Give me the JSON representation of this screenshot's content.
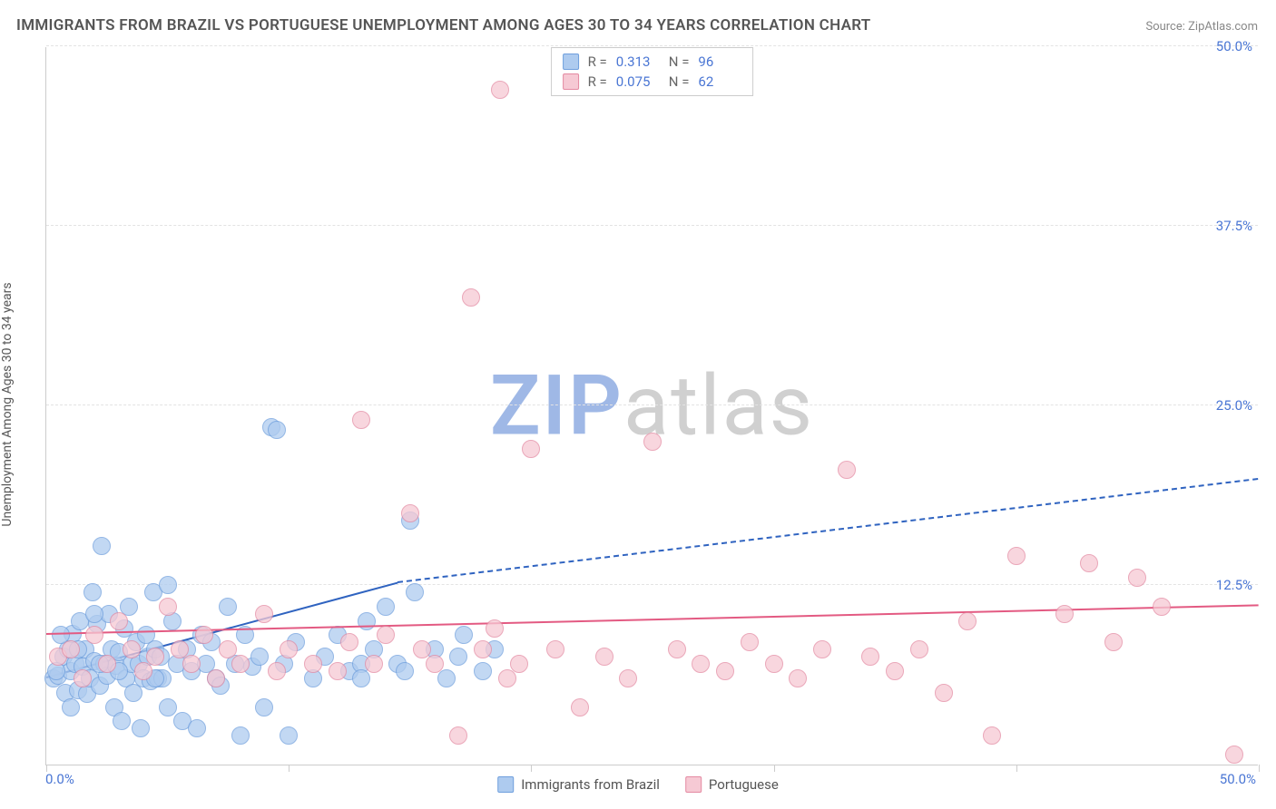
{
  "title": "IMMIGRANTS FROM BRAZIL VS PORTUGUESE UNEMPLOYMENT AMONG AGES 30 TO 34 YEARS CORRELATION CHART",
  "source_label": "Source: ",
  "source_link": "ZipAtlas.com",
  "y_axis_title": "Unemployment Among Ages 30 to 34 years",
  "watermark_a": "ZIP",
  "watermark_b": "atlas",
  "xlim": [
    0,
    50
  ],
  "ylim": [
    0,
    50
  ],
  "x_ticks": [
    0,
    10,
    20,
    30,
    40,
    50
  ],
  "y_gridlines": [
    12.5,
    25.0,
    37.5,
    50.0
  ],
  "y_labels": [
    "12.5%",
    "25.0%",
    "37.5%",
    "50.0%"
  ],
  "x_label_min": "0.0%",
  "x_label_max": "50.0%",
  "marker_radius": 10,
  "series": [
    {
      "name": "Immigrants from Brazil",
      "fill": "#aecbef",
      "stroke": "#6f9fdd",
      "trend_color": "#2f63c0",
      "R": "0.313",
      "N": "96",
      "trend": {
        "x1": 0,
        "y1": 6.0,
        "x2_solid": 14.5,
        "y2_solid": 12.6,
        "x2_dash": 50,
        "y2_dash": 19.8
      },
      "points": [
        [
          0.3,
          6.0
        ],
        [
          0.5,
          6.2
        ],
        [
          0.7,
          7.5
        ],
        [
          0.8,
          5.0
        ],
        [
          0.9,
          8.0
        ],
        [
          1.0,
          6.5
        ],
        [
          1.1,
          9.1
        ],
        [
          1.2,
          7.0
        ],
        [
          1.3,
          5.2
        ],
        [
          1.4,
          10.0
        ],
        [
          1.5,
          6.8
        ],
        [
          1.6,
          8.0
        ],
        [
          1.7,
          4.9
        ],
        [
          1.8,
          6.0
        ],
        [
          1.9,
          12.0
        ],
        [
          2.0,
          7.2
        ],
        [
          2.1,
          9.8
        ],
        [
          2.2,
          5.5
        ],
        [
          2.3,
          15.2
        ],
        [
          2.4,
          7.0
        ],
        [
          2.5,
          6.2
        ],
        [
          2.6,
          10.5
        ],
        [
          2.7,
          8.0
        ],
        [
          2.8,
          4.0
        ],
        [
          2.9,
          6.9
        ],
        [
          3.0,
          7.8
        ],
        [
          3.1,
          3.0
        ],
        [
          3.2,
          9.5
        ],
        [
          3.3,
          6.0
        ],
        [
          3.4,
          11.0
        ],
        [
          3.5,
          7.0
        ],
        [
          3.6,
          5.0
        ],
        [
          3.7,
          8.5
        ],
        [
          3.8,
          7.0
        ],
        [
          3.9,
          2.5
        ],
        [
          4.0,
          6.0
        ],
        [
          4.1,
          9.0
        ],
        [
          4.2,
          7.5
        ],
        [
          4.3,
          5.8
        ],
        [
          4.4,
          12.0
        ],
        [
          4.5,
          8.0
        ],
        [
          4.6,
          6.0
        ],
        [
          4.7,
          7.5
        ],
        [
          4.8,
          6.0
        ],
        [
          5.0,
          4.0
        ],
        [
          5.2,
          10.0
        ],
        [
          5.4,
          7.0
        ],
        [
          5.6,
          3.0
        ],
        [
          5.8,
          8.0
        ],
        [
          6.0,
          6.5
        ],
        [
          6.2,
          2.5
        ],
        [
          6.4,
          9.0
        ],
        [
          6.6,
          7.0
        ],
        [
          6.8,
          8.5
        ],
        [
          7.0,
          6.0
        ],
        [
          7.2,
          5.5
        ],
        [
          7.5,
          11.0
        ],
        [
          7.8,
          7.0
        ],
        [
          8.0,
          2.0
        ],
        [
          8.2,
          9.0
        ],
        [
          8.5,
          6.8
        ],
        [
          8.8,
          7.5
        ],
        [
          9.0,
          4.0
        ],
        [
          9.3,
          23.5
        ],
        [
          9.5,
          23.3
        ],
        [
          9.8,
          7.0
        ],
        [
          10.0,
          2.0
        ],
        [
          10.3,
          8.5
        ],
        [
          11.0,
          6.0
        ],
        [
          11.5,
          7.5
        ],
        [
          12.0,
          9.0
        ],
        [
          12.5,
          6.5
        ],
        [
          13.0,
          7.0
        ],
        [
          13.5,
          8.0
        ],
        [
          14.0,
          11.0
        ],
        [
          14.5,
          7.0
        ],
        [
          15.0,
          17.0
        ],
        [
          15.2,
          12.0
        ],
        [
          16.0,
          8.0
        ],
        [
          16.5,
          6.0
        ],
        [
          17.0,
          7.5
        ],
        [
          17.2,
          9.0
        ],
        [
          18.0,
          6.5
        ],
        [
          18.5,
          8.0
        ],
        [
          13.0,
          6.0
        ],
        [
          13.2,
          10.0
        ],
        [
          14.8,
          6.5
        ],
        [
          4.5,
          6.0
        ],
        [
          2.0,
          10.5
        ],
        [
          1.0,
          4.0
        ],
        [
          0.6,
          9.0
        ],
        [
          0.4,
          6.5
        ],
        [
          1.3,
          8.0
        ],
        [
          2.2,
          7.0
        ],
        [
          3.0,
          6.5
        ],
        [
          5.0,
          12.5
        ]
      ]
    },
    {
      "name": "Portuguese",
      "fill": "#f6c9d4",
      "stroke": "#e48aa2",
      "trend_color": "#e35a82",
      "R": "0.075",
      "N": "62",
      "trend": {
        "x1": 0,
        "y1": 9.0,
        "x2_solid": 50,
        "y2_solid": 11.0,
        "x2_dash": 50,
        "y2_dash": 11.0
      },
      "points": [
        [
          0.5,
          7.5
        ],
        [
          1.0,
          8.0
        ],
        [
          1.5,
          6.0
        ],
        [
          2.0,
          9.0
        ],
        [
          2.5,
          7.0
        ],
        [
          3.0,
          10.0
        ],
        [
          3.5,
          8.0
        ],
        [
          4.0,
          6.5
        ],
        [
          4.5,
          7.5
        ],
        [
          5.0,
          11.0
        ],
        [
          5.5,
          8.0
        ],
        [
          6.0,
          7.0
        ],
        [
          6.5,
          9.0
        ],
        [
          7.0,
          6.0
        ],
        [
          7.5,
          8.0
        ],
        [
          8.0,
          7.0
        ],
        [
          9.0,
          10.5
        ],
        [
          9.5,
          6.5
        ],
        [
          10.0,
          8.0
        ],
        [
          11.0,
          7.0
        ],
        [
          12.0,
          6.5
        ],
        [
          12.5,
          8.5
        ],
        [
          13.0,
          24.0
        ],
        [
          13.5,
          7.0
        ],
        [
          14.0,
          9.0
        ],
        [
          15.0,
          17.5
        ],
        [
          15.5,
          8.0
        ],
        [
          16.0,
          7.0
        ],
        [
          17.0,
          2.0
        ],
        [
          17.5,
          32.5
        ],
        [
          18.0,
          8.0
        ],
        [
          18.5,
          9.5
        ],
        [
          18.7,
          47.0
        ],
        [
          19.0,
          6.0
        ],
        [
          19.5,
          7.0
        ],
        [
          20.0,
          22.0
        ],
        [
          21.0,
          8.0
        ],
        [
          22.0,
          4.0
        ],
        [
          23.0,
          7.5
        ],
        [
          24.0,
          6.0
        ],
        [
          25.0,
          22.5
        ],
        [
          26.0,
          8.0
        ],
        [
          27.0,
          7.0
        ],
        [
          28.0,
          6.5
        ],
        [
          29.0,
          8.5
        ],
        [
          30.0,
          7.0
        ],
        [
          31.0,
          6.0
        ],
        [
          32.0,
          8.0
        ],
        [
          33.0,
          20.5
        ],
        [
          34.0,
          7.5
        ],
        [
          35.0,
          6.5
        ],
        [
          36.0,
          8.0
        ],
        [
          37.0,
          5.0
        ],
        [
          38.0,
          10.0
        ],
        [
          39.0,
          2.0
        ],
        [
          40.0,
          14.5
        ],
        [
          42.0,
          10.5
        ],
        [
          43.0,
          14.0
        ],
        [
          44.0,
          8.5
        ],
        [
          45.0,
          13.0
        ],
        [
          46.0,
          11.0
        ],
        [
          49.0,
          0.7
        ]
      ]
    }
  ],
  "legend": {
    "R_label": "R =",
    "N_label": "N ="
  }
}
